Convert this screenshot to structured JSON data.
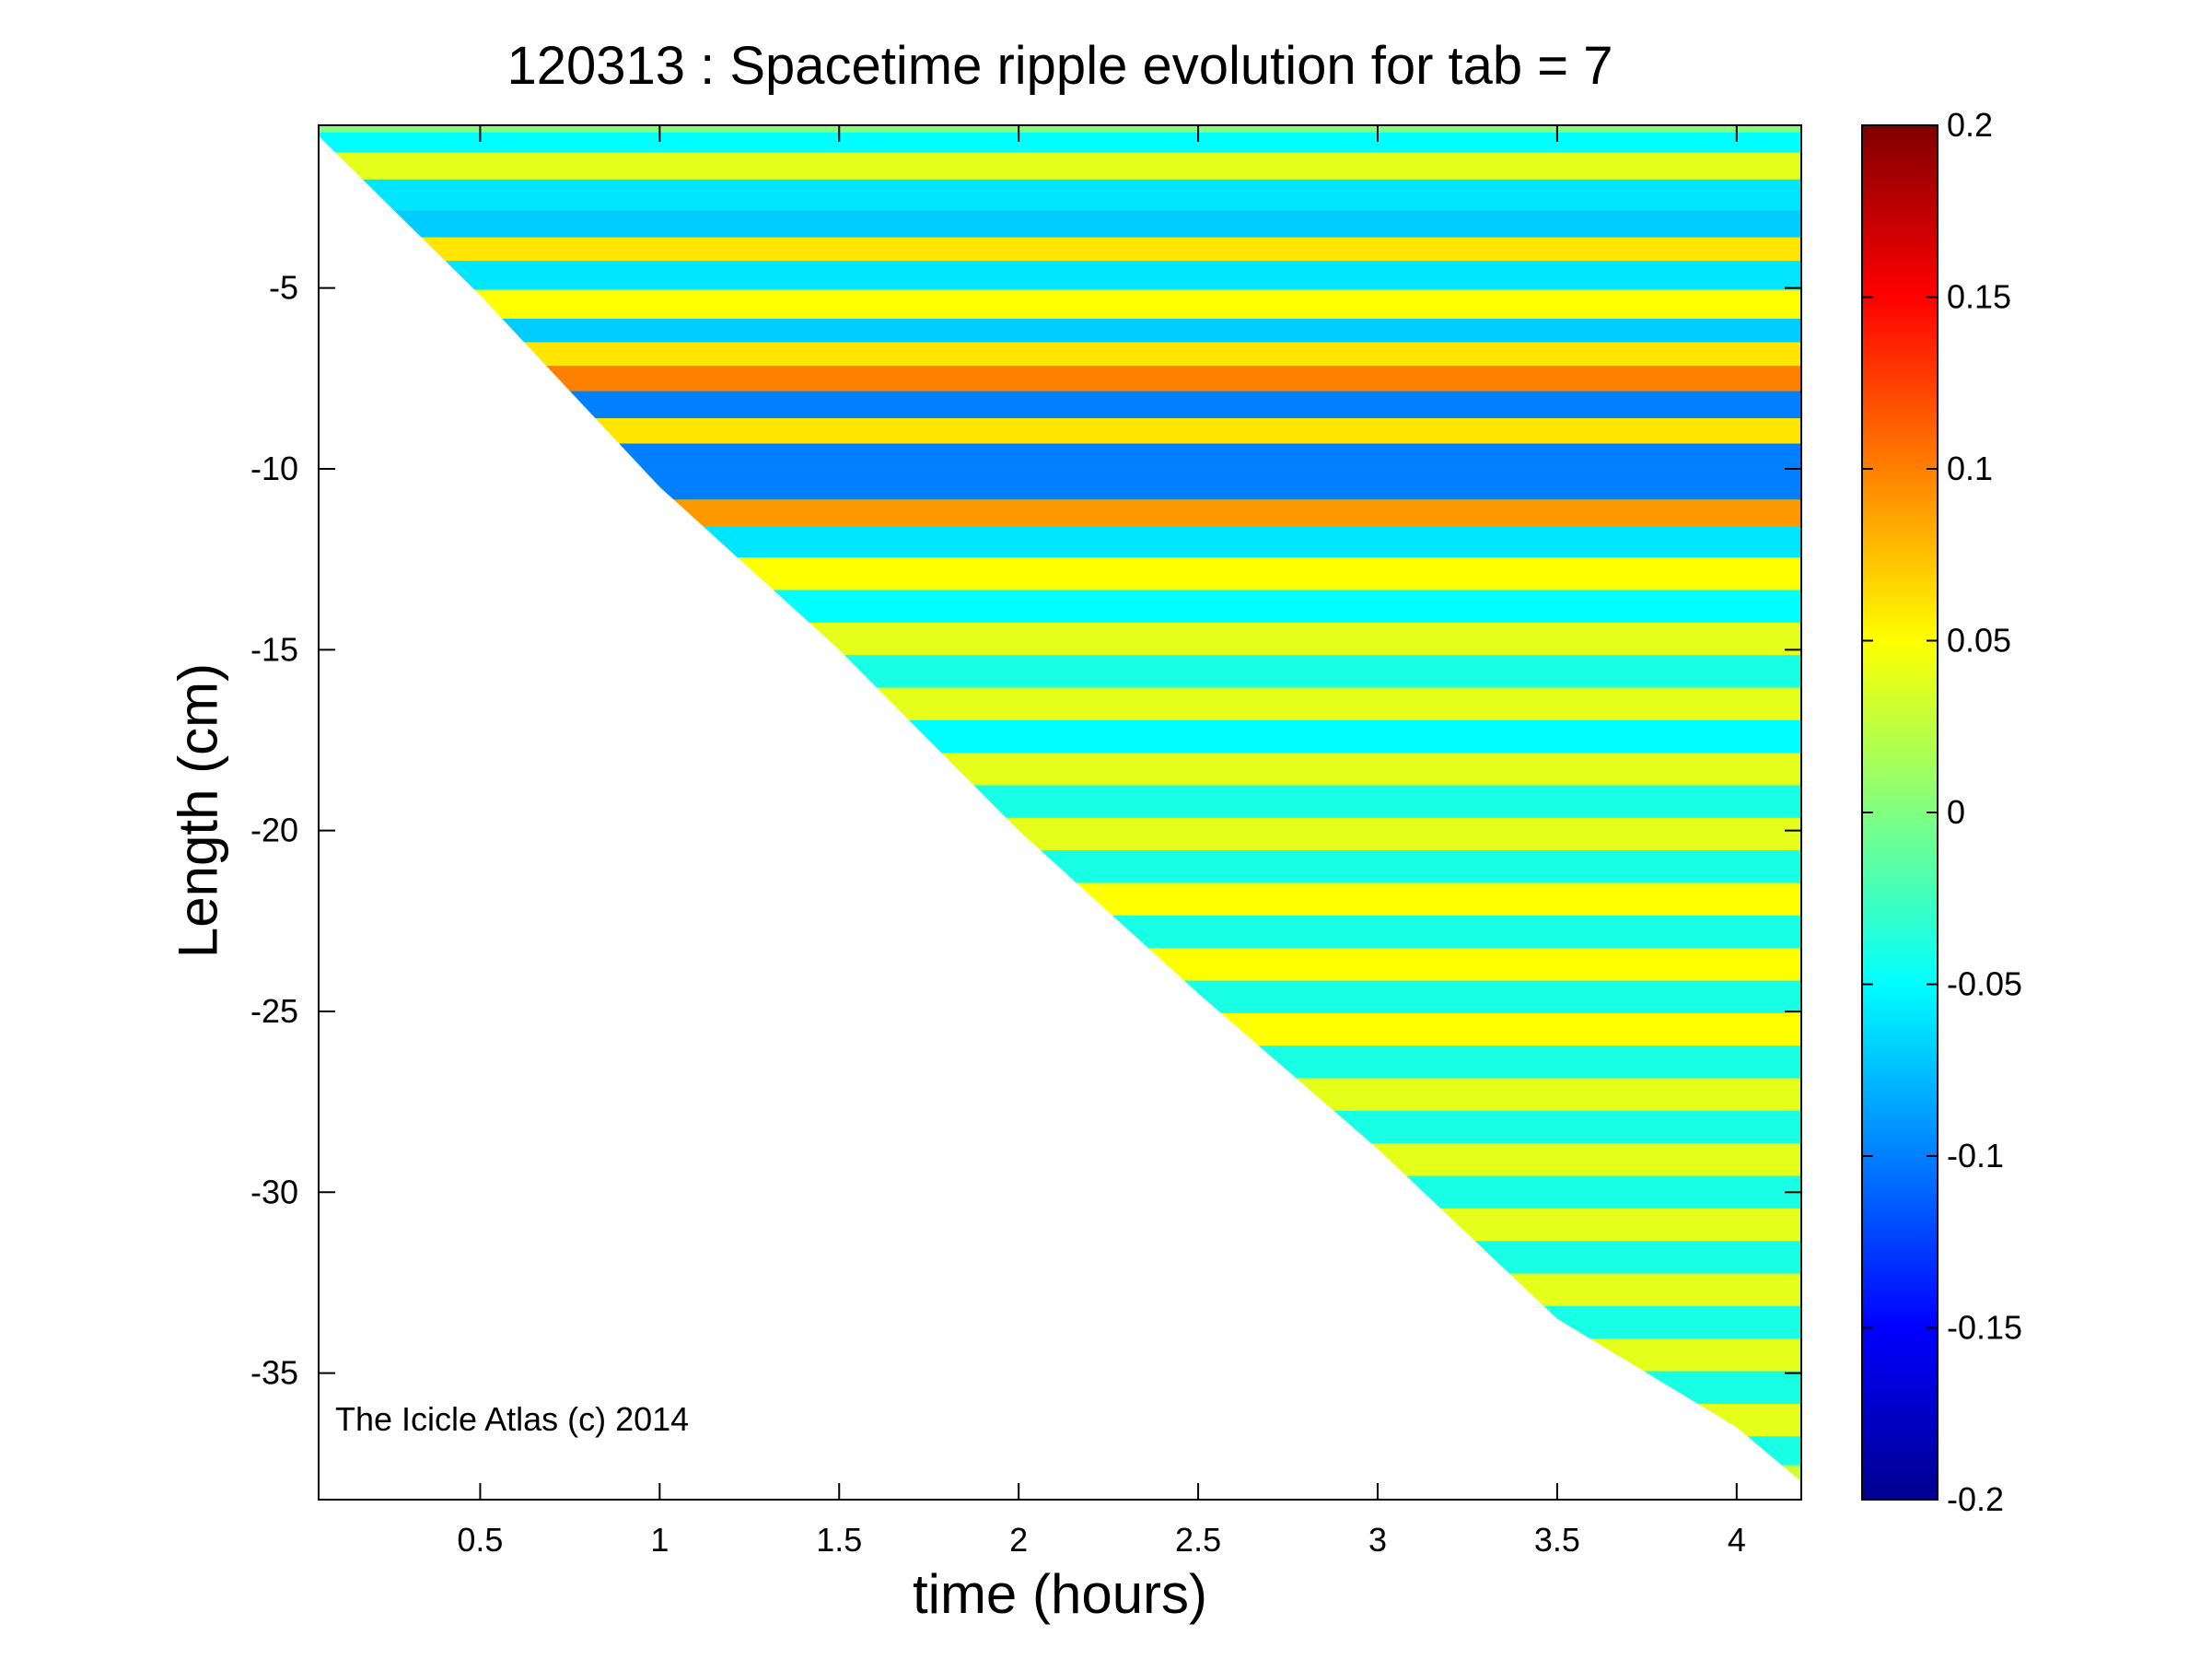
{
  "chart_data": {
    "type": "heatmap",
    "title": "120313 : Spacetime ripple evolution for tab = 7",
    "xlabel": "time (hours)",
    "ylabel": "Length (cm)",
    "annotation": "The Icicle Atlas (c) 2014",
    "xlim": [
      0.05,
      4.18
    ],
    "ylim": [
      -38.5,
      -0.5
    ],
    "xticks": [
      0.5,
      1,
      1.5,
      2,
      2.5,
      3,
      3.5,
      4
    ],
    "xtick_labels": [
      "0.5",
      "1",
      "1.5",
      "2",
      "2.5",
      "3",
      "3.5",
      "4"
    ],
    "yticks": [
      -5,
      -10,
      -15,
      -20,
      -25,
      -30,
      -35
    ],
    "ytick_labels": [
      "-5",
      "-10",
      "-15",
      "-20",
      "-25",
      "-30",
      "-35"
    ],
    "colorbar": {
      "colormap": "jet",
      "clim": [
        -0.2,
        0.2
      ],
      "ticks": [
        0.2,
        0.15,
        0.1,
        0.05,
        0,
        -0.05,
        -0.1,
        -0.15,
        -0.2
      ],
      "tick_labels": [
        "0.2",
        "0.15",
        "0.1",
        "0.05",
        "0",
        "-0.05",
        "-0.1",
        "-0.15",
        "-0.2"
      ]
    },
    "growth_front": {
      "x": [
        0.05,
        0.5,
        1.0,
        1.5,
        2.0,
        2.5,
        3.0,
        3.5,
        4.0,
        4.18
      ],
      "y": [
        -0.8,
        -5.2,
        -10.5,
        -15.0,
        -20.0,
        -24.5,
        -28.8,
        -33.5,
        -36.5,
        -38.0
      ]
    },
    "ripple_bands": [
      {
        "length": -0.9,
        "amplitude": -0.05
      },
      {
        "length": -1.6,
        "amplitude": 0.04
      },
      {
        "length": -2.4,
        "amplitude": -0.06
      },
      {
        "length": -3.3,
        "amplitude": -0.07
      },
      {
        "length": -3.9,
        "amplitude": 0.06
      },
      {
        "length": -4.6,
        "amplitude": -0.06
      },
      {
        "length": -5.5,
        "amplitude": 0.05
      },
      {
        "length": -6.2,
        "amplitude": -0.07
      },
      {
        "length": -6.8,
        "amplitude": 0.06
      },
      {
        "length": -7.5,
        "amplitude": 0.1
      },
      {
        "length": -8.2,
        "amplitude": -0.1
      },
      {
        "length": -9.0,
        "amplitude": 0.06
      },
      {
        "length": -9.6,
        "amplitude": -0.1
      },
      {
        "length": -10.5,
        "amplitude": -0.1
      },
      {
        "length": -11.2,
        "amplitude": 0.09
      },
      {
        "length": -12.0,
        "amplitude": -0.06
      },
      {
        "length": -12.9,
        "amplitude": 0.05
      },
      {
        "length": -13.8,
        "amplitude": -0.05
      },
      {
        "length": -14.7,
        "amplitude": 0.04
      },
      {
        "length": -15.6,
        "amplitude": -0.04
      },
      {
        "length": -16.5,
        "amplitude": 0.04
      },
      {
        "length": -17.4,
        "amplitude": -0.05
      },
      {
        "length": -18.3,
        "amplitude": 0.04
      },
      {
        "length": -19.2,
        "amplitude": -0.04
      },
      {
        "length": -20.1,
        "amplitude": 0.04
      },
      {
        "length": -21.0,
        "amplitude": -0.04
      },
      {
        "length": -21.9,
        "amplitude": 0.05
      },
      {
        "length": -22.8,
        "amplitude": -0.04
      },
      {
        "length": -23.7,
        "amplitude": 0.05
      },
      {
        "length": -24.6,
        "amplitude": -0.04
      },
      {
        "length": -25.5,
        "amplitude": 0.05
      },
      {
        "length": -26.4,
        "amplitude": -0.04
      },
      {
        "length": -27.3,
        "amplitude": 0.04
      },
      {
        "length": -28.2,
        "amplitude": -0.04
      },
      {
        "length": -29.1,
        "amplitude": 0.04
      },
      {
        "length": -30.0,
        "amplitude": -0.04
      },
      {
        "length": -30.9,
        "amplitude": 0.04
      },
      {
        "length": -31.8,
        "amplitude": -0.04
      },
      {
        "length": -32.7,
        "amplitude": 0.04
      },
      {
        "length": -33.6,
        "amplitude": -0.04
      },
      {
        "length": -34.5,
        "amplitude": 0.04
      },
      {
        "length": -35.4,
        "amplitude": -0.04
      },
      {
        "length": -36.3,
        "amplitude": 0.04
      },
      {
        "length": -37.2,
        "amplitude": -0.04
      },
      {
        "length": -37.9,
        "amplitude": 0.03
      }
    ]
  }
}
